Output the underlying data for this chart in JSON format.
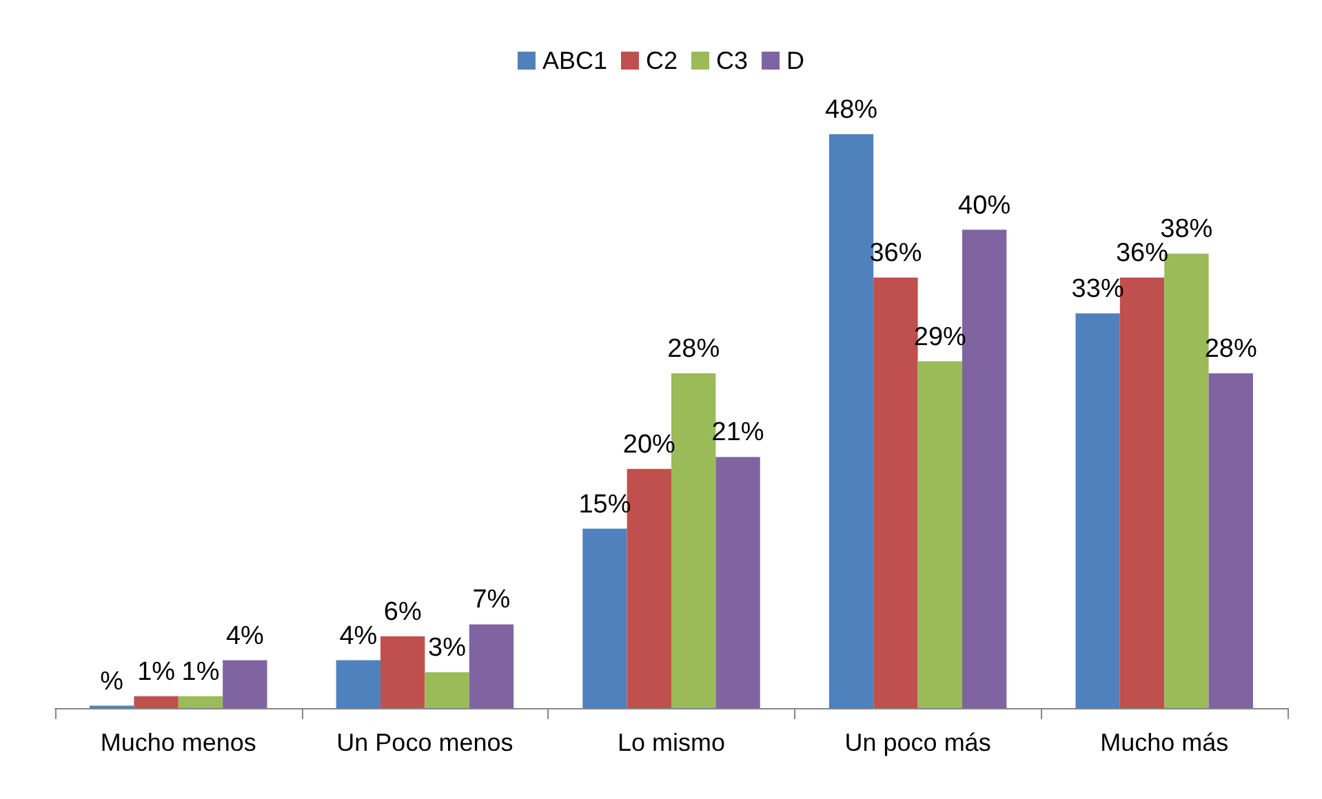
{
  "chart_data": {
    "type": "bar",
    "categories": [
      "Mucho menos",
      "Un Poco menos",
      "Lo mismo",
      "Un poco más",
      "Mucho más"
    ],
    "series": [
      {
        "name": "ABC1",
        "color": "#4f81bd",
        "values": [
          0.2,
          4,
          15,
          48,
          33
        ],
        "value_labels": [
          "%",
          "4%",
          "15%",
          "48%",
          "33%"
        ]
      },
      {
        "name": "C2",
        "color": "#c0504d",
        "values": [
          1,
          6,
          20,
          36,
          36
        ],
        "value_labels": [
          "1%",
          "6%",
          "20%",
          "36%",
          "36%"
        ]
      },
      {
        "name": "C3",
        "color": "#9bbb59",
        "values": [
          1,
          3,
          28,
          29,
          38
        ],
        "value_labels": [
          "1%",
          "3%",
          "28%",
          "29%",
          "38%"
        ]
      },
      {
        "name": "D",
        "color": "#8064a2",
        "values": [
          4,
          7,
          21,
          40,
          28
        ],
        "value_labels": [
          "4%",
          "7%",
          "21%",
          "40%",
          "28%"
        ]
      }
    ],
    "legend": "top",
    "grid": false
  }
}
